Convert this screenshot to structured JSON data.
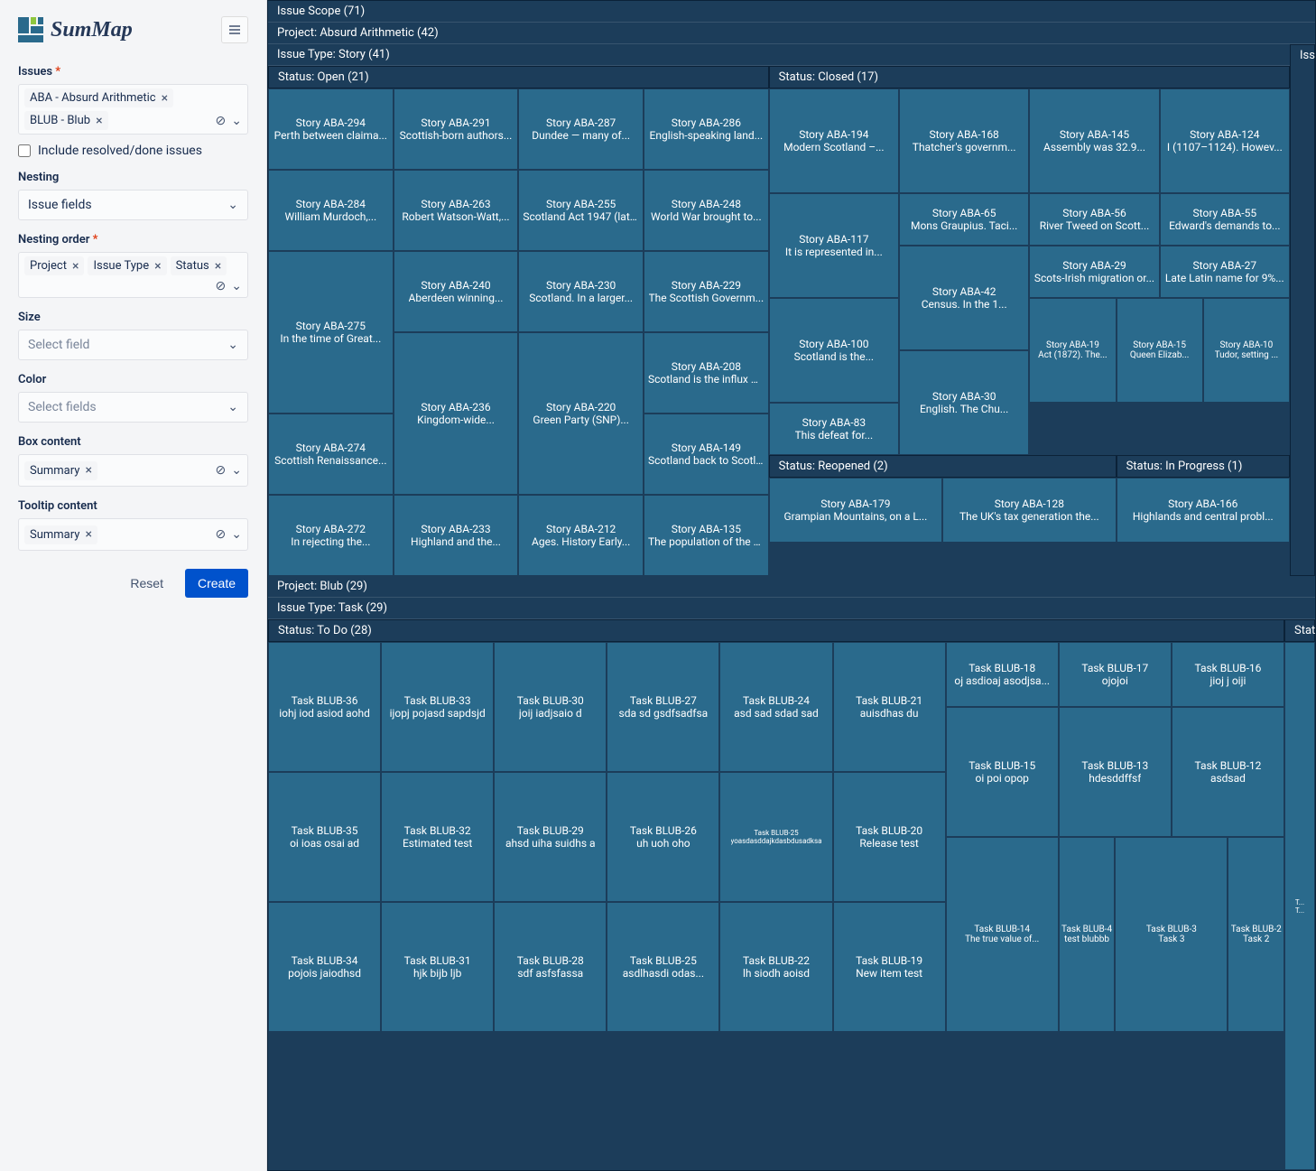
{
  "app": {
    "name": "SumMap"
  },
  "sidebar": {
    "issues_label": "Issues",
    "issues_tags": [
      "ABA - Absurd Arithmetic",
      "BLUB - Blub"
    ],
    "include_resolved_label": "Include resolved/done issues",
    "include_resolved": false,
    "nesting_label": "Nesting",
    "nesting_value": "Issue fields",
    "nesting_order_label": "Nesting order",
    "nesting_order_tags": [
      "Project",
      "Issue Type",
      "Status"
    ],
    "size_label": "Size",
    "size_placeholder": "Select field",
    "color_label": "Color",
    "color_placeholder": "Select fields",
    "box_content_label": "Box content",
    "box_content_tags": [
      "Summary"
    ],
    "tooltip_content_label": "Tooltip content",
    "tooltip_content_tags": [
      "Summary"
    ],
    "reset_label": "Reset",
    "create_label": "Create"
  },
  "treemap": {
    "colors": {
      "frame": "#1c3d5a",
      "cell": "#2a6a8c",
      "border": "#0b2238",
      "text": "#ffffff"
    },
    "scope_label": "Issue Scope (71)",
    "project1_label": "Project: Absurd Arithmetic (42)",
    "type1_label": "Issue Type: Story (41)",
    "type1_side": "Iss",
    "p1_status_open_label": "Status: Open (21)",
    "p1_status_closed_label": "Status: Closed (17)",
    "p1_status_reopened_label": "Status: Reopened (2)",
    "p1_status_inprogress_label": "Status: In Progress (1)",
    "open": [
      {
        "k": "Story ABA-294",
        "s": "Perth between claima..."
      },
      {
        "k": "Story ABA-291",
        "s": "Scottish-born authors..."
      },
      {
        "k": "Story ABA-287",
        "s": "Dundee — many of..."
      },
      {
        "k": "Story ABA-286",
        "s": "English-speaking land..."
      },
      {
        "k": "Story ABA-284",
        "s": "William Murdoch,..."
      },
      {
        "k": "Story ABA-263",
        "s": "Robert Watson-Watt,..."
      },
      {
        "k": "Story ABA-255",
        "s": "Scotland Act 1947 (later..."
      },
      {
        "k": "Story ABA-248",
        "s": "World War brought to..."
      },
      {
        "k": "Story ABA-275",
        "s": "In the time of Great..."
      },
      {
        "k": "Story ABA-240",
        "s": "Aberdeen winning..."
      },
      {
        "k": "Story ABA-230",
        "s": "Scotland. In a larger..."
      },
      {
        "k": "Story ABA-229",
        "s": "The Scottish Governm..."
      },
      {
        "k": "Story ABA-274",
        "s": "Scottish Renaissance..."
      },
      {
        "k": "Story ABA-236",
        "s": "Kingdom-wide..."
      },
      {
        "k": "Story ABA-220",
        "s": "Green Party (SNP)..."
      },
      {
        "k": "Story ABA-208",
        "s": "Scotland is the influx of..."
      },
      {
        "k": "Story ABA-272",
        "s": "In rejecting the..."
      },
      {
        "k": "Story ABA-233",
        "s": "Highland and the..."
      },
      {
        "k": "Story ABA-212",
        "s": "Ages. History Early..."
      },
      {
        "k": "Story ABA-149",
        "s": "Scotland back to Scotland...."
      },
      {
        "k": "Story ABA-135",
        "s": "The population of the west of..."
      }
    ],
    "closed": [
      {
        "k": "Story ABA-194",
        "s": "Modern Scotland –..."
      },
      {
        "k": "Story ABA-168",
        "s": "Thatcher's governm..."
      },
      {
        "k": "Story ABA-145",
        "s": "Assembly was 32.9..."
      },
      {
        "k": "Story ABA-124",
        "s": "I (1107–1124). Howev..."
      },
      {
        "k": "Story ABA-117",
        "s": "It is represented in..."
      },
      {
        "k": "Story ABA-65",
        "s": "Mons Graupius. Taci..."
      },
      {
        "k": "Story ABA-56",
        "s": "River Tweed on Scott..."
      },
      {
        "k": "Story ABA-55",
        "s": "Edward's demands to..."
      },
      {
        "k": "Story ABA-100",
        "s": "Scotland is the..."
      },
      {
        "k": "Story ABA-42",
        "s": "Census. In the 1..."
      },
      {
        "k": "Story ABA-29",
        "s": "Scots-Irish migration or..."
      },
      {
        "k": "Story ABA-27",
        "s": "Late Latin name for 9%..."
      },
      {
        "k": "Story ABA-83",
        "s": "This defeat for..."
      },
      {
        "k": "Story ABA-30",
        "s": "English. The Chu..."
      },
      {
        "k": "Story ABA-19",
        "s": "Act (1872). The..."
      },
      {
        "k": "Story ABA-15",
        "s": "Queen Elizab..."
      },
      {
        "k": "Story ABA-10",
        "s": "Tudor, setting ..."
      }
    ],
    "reopened": [
      {
        "k": "Story ABA-179",
        "s": "Grampian Mountains, on a L..."
      },
      {
        "k": "Story ABA-128",
        "s": "The UK's tax generation the..."
      }
    ],
    "inprogress": [
      {
        "k": "Story ABA-166",
        "s": "Highlands and central probl..."
      }
    ],
    "project2_label": "Project: Blub (29)",
    "type2_label": "Issue Type: Task (29)",
    "p2_status_todo_label": "Status: To Do (28)",
    "p2_status_side_label": "Statu",
    "todo": [
      {
        "k": "Task BLUB-36",
        "s": "iohj iod asiod aohd"
      },
      {
        "k": "Task BLUB-33",
        "s": "ijopj pojasd sapdsjd"
      },
      {
        "k": "Task BLUB-30",
        "s": "joij iadjsaio d"
      },
      {
        "k": "Task BLUB-27",
        "s": "sda sd gsdfsadfsa"
      },
      {
        "k": "Task BLUB-24",
        "s": "asd sad sdad sad"
      },
      {
        "k": "Task BLUB-21",
        "s": "auisdhas du"
      },
      {
        "k": "Task BLUB-18",
        "s": "oj asdioaj asodjsa..."
      },
      {
        "k": "Task BLUB-17",
        "s": "ojojoi"
      },
      {
        "k": "Task BLUB-16",
        "s": "jioj j oiji"
      },
      {
        "k": "Task BLUB-35",
        "s": "oi ioas osai ad"
      },
      {
        "k": "Task BLUB-32",
        "s": "Estimated test"
      },
      {
        "k": "Task BLUB-29",
        "s": "ahsd uiha suidhs a"
      },
      {
        "k": "Task BLUB-26",
        "s": "uh uoh oho"
      },
      {
        "k": "Task BLUB-25",
        "s": "yoasdasddajkdasbdusadksa"
      },
      {
        "k": "Task BLUB-20",
        "s": "Release test"
      },
      {
        "k": "Task BLUB-15",
        "s": "oi poi opop"
      },
      {
        "k": "Task BLUB-13",
        "s": "hdesddffsf"
      },
      {
        "k": "Task BLUB-12",
        "s": "asdsad"
      },
      {
        "k": "Task BLUB-34",
        "s": "pojois jaiodhsd"
      },
      {
        "k": "Task BLUB-31",
        "s": "hjk bijb ljb"
      },
      {
        "k": "Task BLUB-28",
        "s": "sdf asfsfassa"
      },
      {
        "k": "Task BLUB-25",
        "s": "asdlhasdi odas..."
      },
      {
        "k": "Task BLUB-22",
        "s": "lh siodh aoisd"
      },
      {
        "k": "Task BLUB-19",
        "s": "New item test"
      },
      {
        "k": "Task BLUB-14",
        "s": "The true value of..."
      },
      {
        "k": "Task BLUB-4",
        "s": "test blubbb"
      },
      {
        "k": "Task BLUB-3",
        "s": "Task 3"
      },
      {
        "k": "Task BLUB-2",
        "s": "Task 2"
      }
    ],
    "p2_side_cell": {
      "k": "T...",
      "s": "T..."
    }
  }
}
